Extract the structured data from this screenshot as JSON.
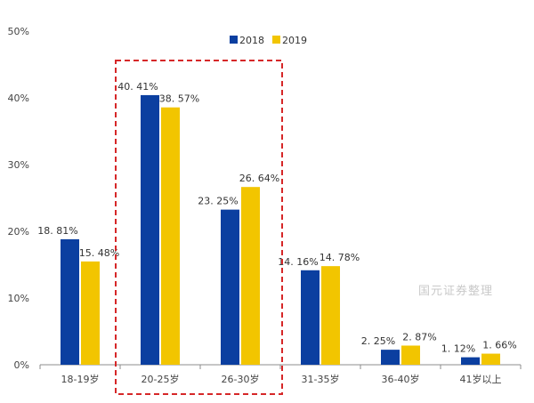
{
  "chart_data": {
    "type": "bar",
    "title": "",
    "xlabel": "",
    "ylabel": "",
    "categories": [
      "18-19岁",
      "20-25岁",
      "26-30岁",
      "31-35岁",
      "36-40岁",
      "41岁以上"
    ],
    "series": [
      {
        "name": "2018",
        "color": "#0B3FA0",
        "values": [
          18.81,
          40.41,
          23.25,
          14.16,
          2.25,
          1.12
        ],
        "labels": [
          "18. 81%",
          "40. 41%",
          "23. 25%",
          "14. 16%",
          "2. 25%",
          "1. 12%"
        ]
      },
      {
        "name": "2019",
        "color": "#F2C500",
        "values": [
          15.48,
          38.57,
          26.64,
          14.78,
          2.87,
          1.66
        ],
        "labels": [
          "15. 48%",
          "38. 57%",
          "26. 64%",
          "14. 78%",
          "2. 87%",
          "1. 66%"
        ]
      }
    ],
    "ylim": [
      0,
      50
    ],
    "yticks": [
      "0%",
      "10%",
      "20%",
      "30%",
      "40%",
      "50%"
    ],
    "grid": false,
    "legend_position": "top-center",
    "highlight": {
      "categories": [
        "20-25岁",
        "26-30岁"
      ],
      "style": "dashed-box",
      "color": "#D62728"
    },
    "watermark": "国元证券整理"
  }
}
